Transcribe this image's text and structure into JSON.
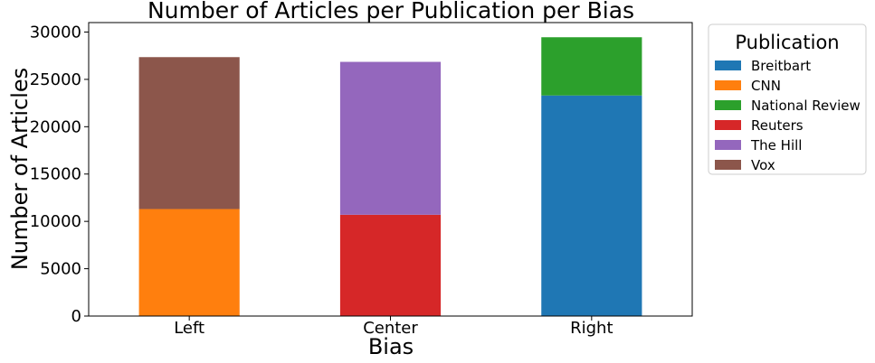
{
  "chart_data": {
    "type": "bar",
    "stacked": true,
    "title": "Number of Articles per Publication per Bias",
    "xlabel": "Bias",
    "ylabel": "Number of Articles",
    "categories": [
      "Left",
      "Center",
      "Right"
    ],
    "ylim": [
      0,
      31000
    ],
    "yticks": [
      0,
      5000,
      10000,
      15000,
      20000,
      25000,
      30000
    ],
    "grid": false,
    "legend": {
      "title": "Publication",
      "placement": "outside-right-top"
    },
    "series": [
      {
        "name": "Breitbart",
        "color": "#1f77b4",
        "values": [
          0,
          0,
          23300
        ]
      },
      {
        "name": "CNN",
        "color": "#ff7f0e",
        "values": [
          11300,
          0,
          0
        ]
      },
      {
        "name": "National Review",
        "color": "#2ca02c",
        "values": [
          0,
          0,
          6150
        ]
      },
      {
        "name": "Reuters",
        "color": "#d62728",
        "values": [
          0,
          10700,
          0
        ]
      },
      {
        "name": "The Hill",
        "color": "#9467bd",
        "values": [
          0,
          16150,
          0
        ]
      },
      {
        "name": "Vox",
        "color": "#8c564b",
        "values": [
          16050,
          0,
          0
        ]
      }
    ]
  }
}
